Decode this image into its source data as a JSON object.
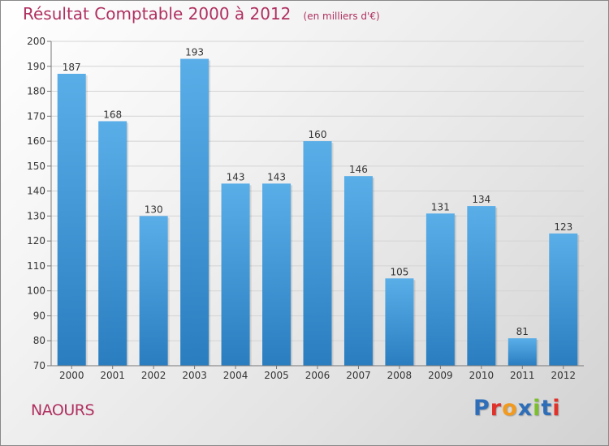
{
  "header": {
    "title": "Résultat Comptable 2000 à 2012",
    "subtitle": "(en milliers d'€)"
  },
  "place": "NAOURS",
  "brand": {
    "name": "Proxiti",
    "letters": [
      {
        "char": "P",
        "color": "#2e6eb8"
      },
      {
        "char": "r",
        "color": "#e0312a"
      },
      {
        "char": "o",
        "color": "#f29a1d"
      },
      {
        "char": "x",
        "color": "#2e6eb8"
      },
      {
        "char": "i",
        "color": "#7cbf2e"
      },
      {
        "char": "t",
        "color": "#2e6eb8"
      },
      {
        "char": "i",
        "color": "#e0312a"
      }
    ]
  },
  "chart_data": {
    "type": "bar",
    "title": "Résultat Comptable 2000 à 2012",
    "subtitle": "(en milliers d'€)",
    "categories": [
      "2000",
      "2001",
      "2002",
      "2003",
      "2004",
      "2005",
      "2006",
      "2007",
      "2008",
      "2009",
      "2010",
      "2011",
      "2012"
    ],
    "values": [
      187,
      168,
      130,
      193,
      143,
      143,
      160,
      146,
      105,
      131,
      134,
      81,
      123
    ],
    "ylim": [
      70,
      200
    ],
    "yticks": [
      70,
      80,
      90,
      100,
      110,
      120,
      130,
      140,
      150,
      160,
      170,
      180,
      190,
      200
    ],
    "grid": true,
    "bar_color_top": "#5aaee8",
    "bar_color_bottom": "#2a7ec0",
    "label_color": "#333333"
  }
}
